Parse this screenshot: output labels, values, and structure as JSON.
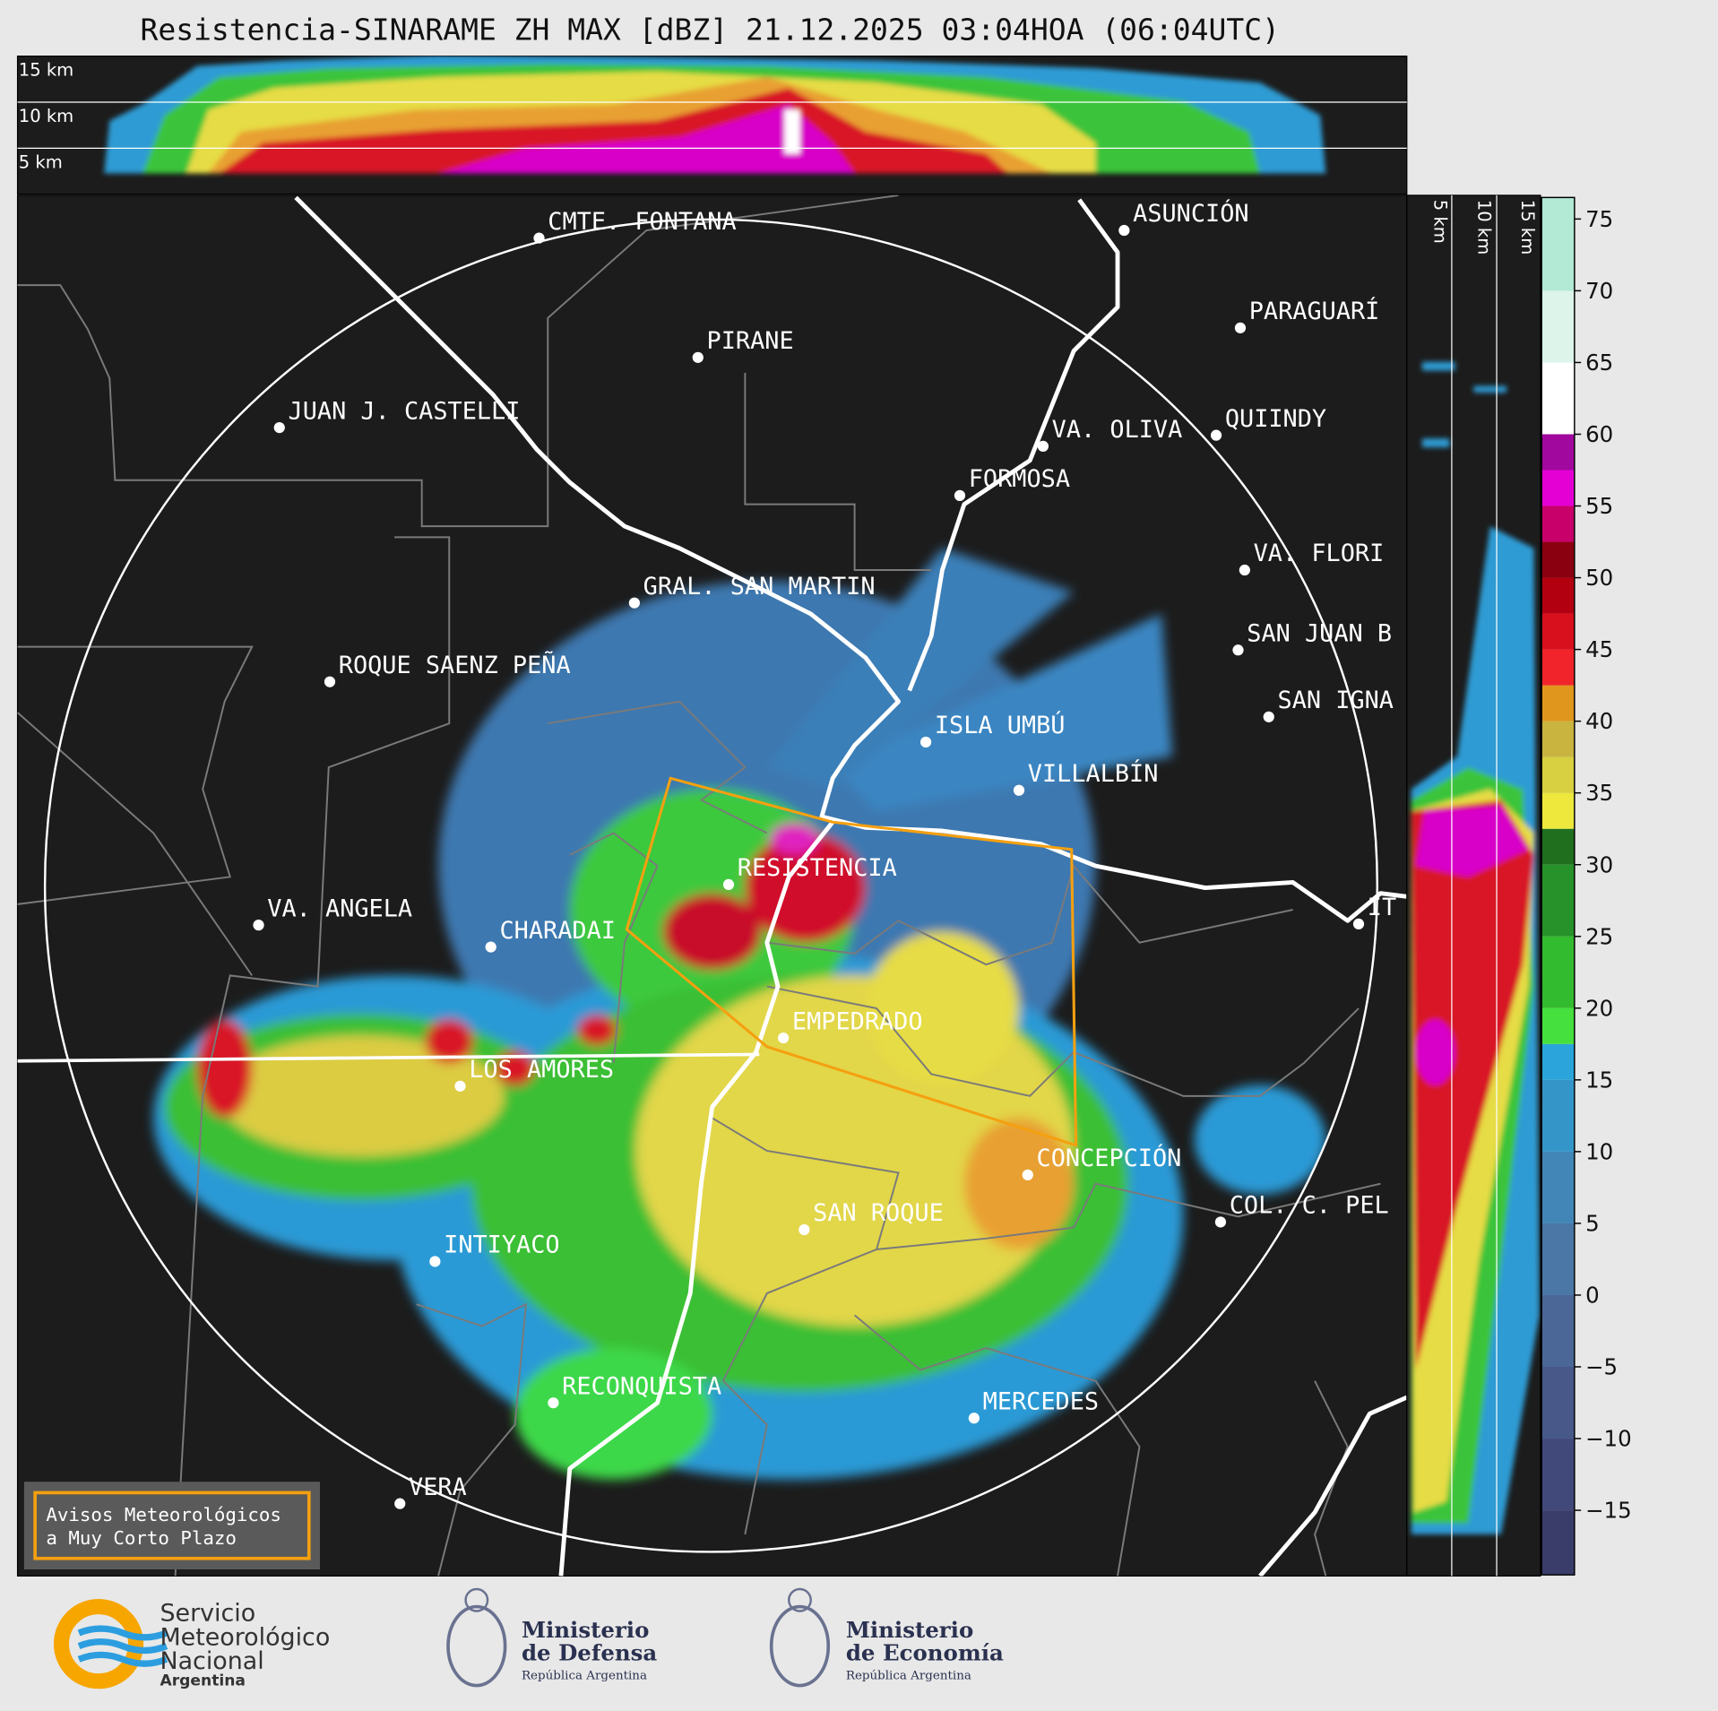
{
  "title": "Resistencia-SINARAME ZH MAX [dBZ] 21.12.2025 03:04HOA (06:04UTC)",
  "height_labels_top": [
    "15 km",
    "10 km",
    "5 km"
  ],
  "height_labels_side": [
    "5 km",
    "10 km",
    "15 km"
  ],
  "places": [
    "CMTE. FONTANA",
    "PIRANE",
    "JUAN J. CASTELLI",
    "ASUNCIÓN",
    "PARAGUARÍ",
    "VA. OLIVA",
    "QUIINDY",
    "FORMOSA",
    "VA. FLORI",
    "GRAL. SAN MARTIN",
    "SAN JUAN B",
    "ROQUE SAENZ PEÑA",
    "SAN IGNA",
    "ISLA UMBÚ",
    "VILLALBÍN",
    "RESISTENCIA",
    "IT",
    "VA. ANGELA",
    "CHARADAI",
    "EMPEDRADO",
    "LOS AMORES",
    "CONCEPCIÓN",
    "COL. C. PEL",
    "SAN ROQUE",
    "INTIYACO",
    "RECONQUISTA",
    "MERCEDES",
    "VERA"
  ],
  "colorbar": {
    "lim": [
      -19.5,
      76.5
    ],
    "ticks": [
      {
        "value": -15,
        "label": "−15"
      },
      {
        "value": -10,
        "label": "−10"
      },
      {
        "value": -5,
        "label": "−5"
      },
      0,
      5,
      10,
      15,
      20,
      25,
      30,
      35,
      40,
      45,
      50,
      55,
      60,
      65,
      70,
      75
    ],
    "bounds": [
      -19.5,
      -15,
      -10,
      -5,
      0,
      5,
      10,
      15,
      17.5,
      20,
      25,
      30,
      32.5,
      35,
      37.5,
      40,
      42.5,
      45,
      47.5,
      50,
      52.5,
      55,
      57.5,
      60,
      65,
      70,
      76.5
    ],
    "colors": [
      "#3a3d69",
      "#41497a",
      "#475889",
      "#4b6797",
      "#4a77a6",
      "#4286b7",
      "#3495c9",
      "#2aa4da",
      "#45e03e",
      "#33bb2f",
      "#27922a",
      "#1f6f1f",
      "#eee83c",
      "#d8d040",
      "#c9b440",
      "#e0961c",
      "#f0242a",
      "#d8101e",
      "#b20010",
      "#8a0010",
      "#c8006a",
      "#e400d4",
      "#a0089e",
      "#ffffff",
      "#dcf4ea",
      "#b2ead6",
      "#82dcba"
    ]
  },
  "notice": [
    "Avisos Meteorológicos",
    "a Muy Corto Plazo"
  ],
  "logos": {
    "smn": [
      "Servicio",
      "Meteorológico",
      "Nacional",
      "Argentina"
    ],
    "defensa": [
      "Ministerio",
      "de Defensa",
      "República Argentina"
    ],
    "economia": [
      "Ministerio",
      "de Economía",
      "República Argentina"
    ]
  }
}
